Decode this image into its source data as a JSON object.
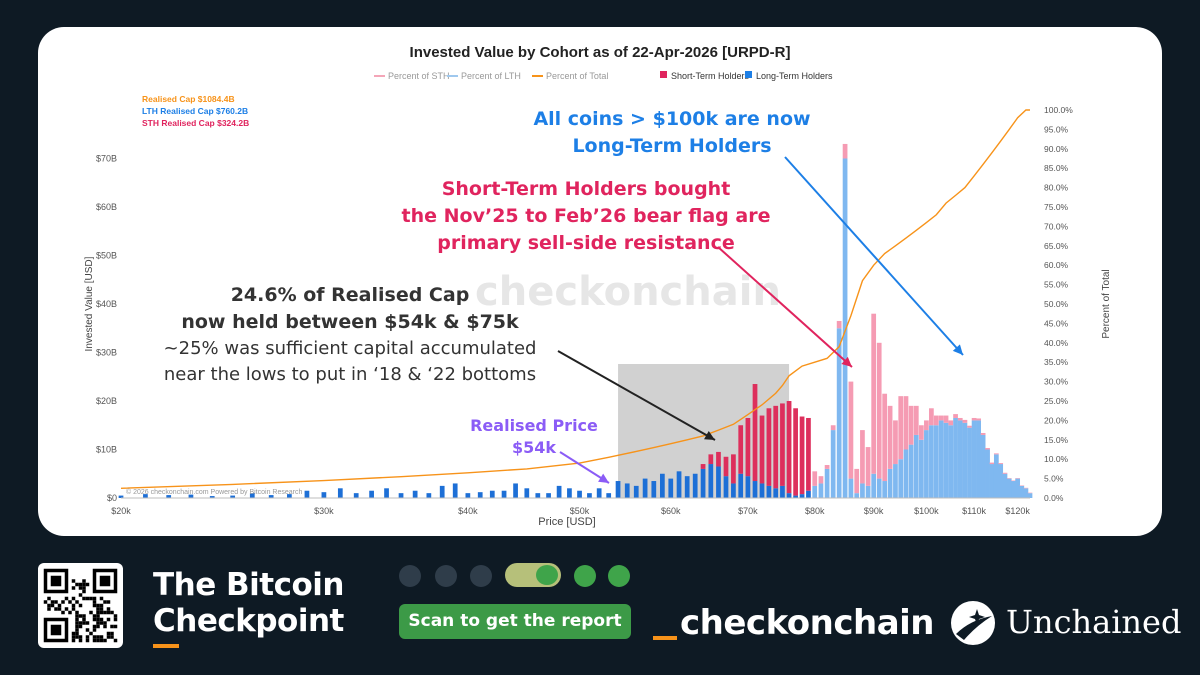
{
  "chart_data": {
    "type": "bar",
    "title": "Invested Value by Cohort as of 22-Apr-2026 [URPD-R]",
    "xlabel": "Price [USD]",
    "ylabel": "Invested Value [USD]",
    "y2label": "Percent of Total",
    "x_ticks": [
      {
        "value": 20000,
        "label": "$20k"
      },
      {
        "value": 30000,
        "label": "$30k"
      },
      {
        "value": 40000,
        "label": "$40k"
      },
      {
        "value": 50000,
        "label": "$50k"
      },
      {
        "value": 60000,
        "label": "$60k"
      },
      {
        "value": 70000,
        "label": "$70k"
      },
      {
        "value": 80000,
        "label": "$80k"
      },
      {
        "value": 90000,
        "label": "$90k"
      },
      {
        "value": 100000,
        "label": "$100k"
      },
      {
        "value": 110000,
        "label": "$110k"
      },
      {
        "value": 120000,
        "label": "$120k"
      }
    ],
    "y_ticks": [
      {
        "value": 0,
        "label": "$0"
      },
      {
        "value": 10,
        "label": "$10B"
      },
      {
        "value": 20,
        "label": "$20B"
      },
      {
        "value": 30,
        "label": "$30B"
      },
      {
        "value": 40,
        "label": "$40B"
      },
      {
        "value": 50,
        "label": "$50B"
      },
      {
        "value": 60,
        "label": "$60B"
      },
      {
        "value": 70,
        "label": "$70B"
      }
    ],
    "y2_ticks": [
      "0.0%",
      "5.0%",
      "10.0%",
      "15.0%",
      "20.0%",
      "25.0%",
      "30.0%",
      "35.0%",
      "40.0%",
      "45.0%",
      "50.0%",
      "55.0%",
      "60.0%",
      "65.0%",
      "70.0%",
      "75.0%",
      "80.0%",
      "85.0%",
      "90.0%",
      "95.0%",
      "100.0%"
    ],
    "ylim": [
      0,
      80
    ],
    "y2lim": [
      0,
      100
    ],
    "legend": [
      {
        "label": "Percent of STH",
        "color": "#f4a6b8",
        "kind": "line"
      },
      {
        "label": "Percent of LTH",
        "color": "#9fc8ee",
        "kind": "line"
      },
      {
        "label": "Percent of Total",
        "color": "#f7931a",
        "kind": "line"
      },
      {
        "label": "Short-Term Holders",
        "color": "#e0245e",
        "kind": "square"
      },
      {
        "label": "Long-Term Holders",
        "color": "#1d7fe6",
        "kind": "square"
      }
    ],
    "legend_placement": "top",
    "cap_labels": [
      {
        "text": "Realised Cap $1084.4B",
        "color": "#f7931a"
      },
      {
        "text": "LTH Realised Cap $760.2B",
        "color": "#1d7fe6"
      },
      {
        "text": "STH Realised Cap $324.2B",
        "color": "#e0245e"
      }
    ],
    "watermark": "checkonchain",
    "footnote": "© 2026 checkonchain.com Powered by Bitcoin Research",
    "highlight_range": [
      54000,
      76000
    ],
    "colors": {
      "lth_dark": "#1d6fd6",
      "sth_dark": "#dd2f5c",
      "lth_light": "#7fb8f0",
      "sth_light": "#f59bb3",
      "total": "#f7931a"
    },
    "series": [
      {
        "name": "Long-Term Holders",
        "x": [
          20000,
          21000,
          22000,
          23000,
          24000,
          25000,
          26000,
          27000,
          28000,
          29000,
          30000,
          31000,
          32000,
          33000,
          34000,
          35000,
          36000,
          37000,
          38000,
          39000,
          40000,
          41000,
          42000,
          43000,
          44000,
          45000,
          46000,
          47000,
          48000,
          49000,
          50000,
          51000,
          52000,
          53000,
          54000,
          55000,
          56000,
          57000,
          58000,
          59000,
          60000,
          61000,
          62000,
          63000,
          64000,
          65000,
          66000,
          67000,
          68000,
          69000,
          70000,
          71000,
          72000,
          73000,
          74000,
          75000,
          76000,
          77000,
          78000,
          79000,
          80000,
          81000,
          82000,
          83000,
          84000,
          85000,
          86000,
          87000,
          88000,
          89000,
          90000,
          91000,
          92000,
          93000,
          94000,
          95000,
          96000,
          97000,
          98000,
          99000,
          100000,
          101000,
          102000,
          103000,
          104000,
          105000,
          106000,
          107000,
          108000,
          109000,
          110000,
          111000,
          112000,
          113000,
          114000,
          115000,
          116000,
          117000,
          118000,
          119000,
          120000,
          121000,
          122000,
          123000
        ],
        "values": [
          0.5,
          0.8,
          0.6,
          0.7,
          0.4,
          0.5,
          1.0,
          0.6,
          0.8,
          1.5,
          1.2,
          2.0,
          1.0,
          1.5,
          2.0,
          1.0,
          1.5,
          1.0,
          2.5,
          3.0,
          1.0,
          1.2,
          1.5,
          1.5,
          3.0,
          2.0,
          1.0,
          1.0,
          2.5,
          2.0,
          1.5,
          1.0,
          2.0,
          1.0,
          3.5,
          3.0,
          2.5,
          4.0,
          3.5,
          5.0,
          4.0,
          5.5,
          4.5,
          5.0,
          6.0,
          7.0,
          6.5,
          4.5,
          3.0,
          5.0,
          4.5,
          3.5,
          3.0,
          2.5,
          2.0,
          2.5,
          1.0,
          0.5,
          0.8,
          1.5,
          2.5,
          3.0,
          6.0,
          14.0,
          35.0,
          70.0,
          4.0,
          1.0,
          3.0,
          2.5,
          5.0,
          4.0,
          3.5,
          6.0,
          7.0,
          8.0,
          10.0,
          11.0,
          13.0,
          12.0,
          14.0,
          15.0,
          15.0,
          16.0,
          15.5,
          15.0,
          16.5,
          16.0,
          15.5,
          14.5,
          16.0,
          16.0,
          13.0,
          10.0,
          7.0,
          9.0,
          7.0,
          5.0,
          4.0,
          3.5,
          4.0,
          2.5,
          2.0,
          1.0
        ]
      },
      {
        "name": "Short-Term Holders",
        "x": [
          64000,
          65000,
          66000,
          67000,
          68000,
          69000,
          70000,
          71000,
          72000,
          73000,
          74000,
          75000,
          76000,
          77000,
          78000,
          79000,
          80000,
          81000,
          82000,
          83000,
          84000,
          85000,
          86000,
          87000,
          88000,
          89000,
          90000,
          91000,
          92000,
          93000,
          94000,
          95000,
          96000,
          97000,
          98000,
          99000,
          100000,
          101000,
          102000,
          103000,
          104000,
          105000,
          106000,
          107000,
          108000,
          109000,
          110000,
          111000,
          112000,
          113000,
          114000,
          115000,
          116000,
          117000,
          118000,
          119000,
          120000,
          121000,
          122000,
          123000
        ],
        "values": [
          1.0,
          2.0,
          3.0,
          4.0,
          6.0,
          10.0,
          12.0,
          20.0,
          14.0,
          16.0,
          17.0,
          17.0,
          19.0,
          18.0,
          16.0,
          15.0,
          3.0,
          1.5,
          0.8,
          1.0,
          1.5,
          3.0,
          20.0,
          5.0,
          11.0,
          8.0,
          33.0,
          28.0,
          18.0,
          13.0,
          9.0,
          13.0,
          11.0,
          8.0,
          6.0,
          3.0,
          2.0,
          3.5,
          2.0,
          1.0,
          1.5,
          1.0,
          0.8,
          0.5,
          0.6,
          0.4,
          0.5,
          0.4,
          0.4,
          0.3,
          0.3,
          0.2,
          0.2,
          0.2,
          0.1,
          0.1,
          0.1,
          0.1,
          0.1,
          0.1
        ]
      },
      {
        "name": "Percent of Total",
        "x": [
          20000,
          25000,
          30000,
          35000,
          40000,
          45000,
          50000,
          53000,
          54000,
          56000,
          58000,
          60000,
          62000,
          64000,
          66000,
          68000,
          70000,
          72000,
          74000,
          75000,
          76000,
          78000,
          80000,
          82000,
          84000,
          86000,
          88000,
          90000,
          92000,
          94000,
          96000,
          98000,
          100000,
          102000,
          104000,
          106000,
          108000,
          110000,
          112000,
          114000,
          116000,
          118000,
          120000,
          122000,
          123000
        ],
        "values": [
          2.5,
          3.5,
          4.5,
          5.5,
          6.5,
          7.5,
          9.0,
          10.5,
          11.0,
          12.0,
          13.0,
          14.0,
          15.0,
          16.0,
          17.5,
          19.0,
          21.5,
          24.0,
          27.0,
          29.0,
          31.5,
          34.0,
          35.0,
          36.0,
          39.0,
          47.0,
          56.0,
          60.0,
          63.0,
          65.0,
          67.0,
          69.0,
          71.0,
          73.0,
          76.0,
          78.0,
          80.0,
          83.0,
          86.0,
          89.0,
          92.0,
          95.0,
          98.0,
          100.0,
          100.0
        ]
      }
    ],
    "annotations": [
      {
        "lines": [
          "All coins > $100k are now",
          "Long-Term Holders"
        ],
        "color": "#1d7fe6"
      },
      {
        "lines": [
          "Short-Term Holders bought",
          "the Nov’25 to Feb’26 bear flag are",
          "primary sell-side resistance"
        ],
        "color": "#e0245e"
      },
      {
        "lines": [
          "24.6% of Realised Cap",
          "now held between $54k & $75k"
        ],
        "color": "#333333"
      },
      {
        "lines": [
          "~25% was sufficient capital accumulated",
          "near the lows to put in ‘18 & ‘22 bottoms"
        ],
        "color": "#333333"
      },
      {
        "lines": [
          "Realised Price",
          "$54k"
        ],
        "color": "#8b5cf6"
      }
    ]
  },
  "footer": {
    "title_line1": "The Bitcoin",
    "title_line2": "Checkpoint",
    "scan_label": "Scan to get the report",
    "brand": "checkonchain",
    "partner": "Unchained"
  }
}
